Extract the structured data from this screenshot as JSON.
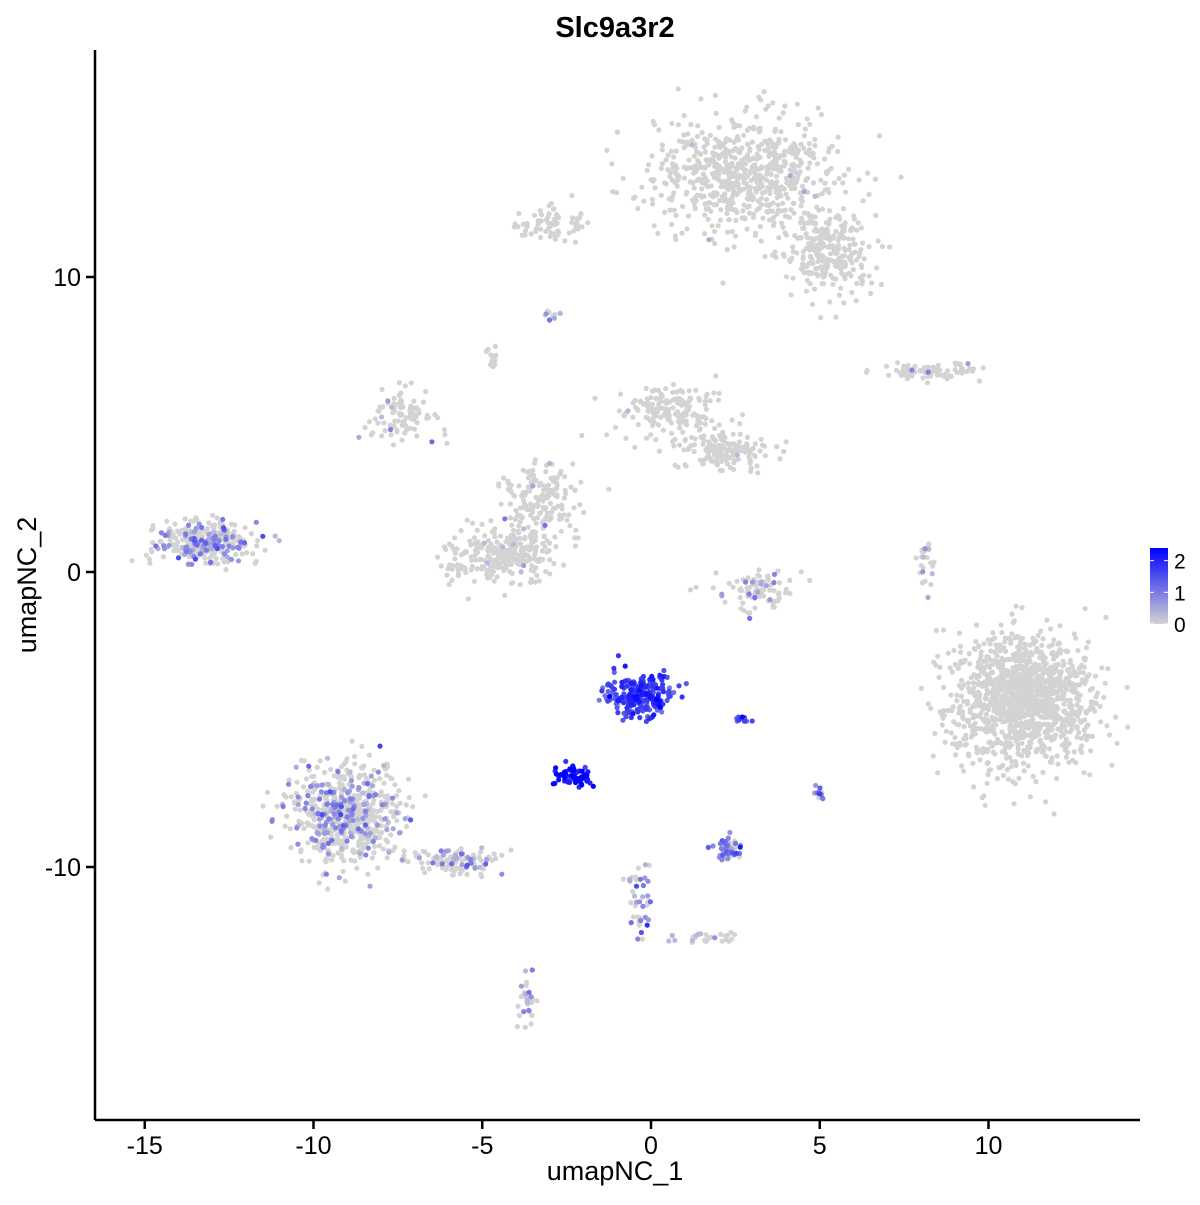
{
  "chart_data": {
    "type": "scatter",
    "title": "Slc9a3r2",
    "xlabel": "umapNC_1",
    "ylabel": "umapNC_2",
    "xlim": [
      -16.5,
      14.5
    ],
    "ylim": [
      -18.5,
      17.5
    ],
    "x_ticks": [
      -15,
      -10,
      -5,
      0,
      5,
      10
    ],
    "x_tick_labels": [
      "-15",
      "-10",
      "-5",
      "0",
      "5",
      "10"
    ],
    "y_ticks": [
      10,
      0,
      -10
    ],
    "y_tick_labels": [
      "10",
      "0",
      "-10"
    ],
    "grid": false,
    "legend": {
      "placement": "right",
      "type": "colorbar",
      "title": "",
      "ticks": [
        2,
        1,
        0
      ],
      "tick_labels": [
        "2",
        "1",
        "0"
      ],
      "range": [
        0,
        2.4
      ],
      "low_color": "#d3d3d3",
      "high_color": "#0000ff"
    },
    "point_color_low": "#d3d3d3",
    "point_color_high": "#0000ff",
    "clusters": [
      {
        "id": "top-large",
        "center": [
          2.8,
          13.5
        ],
        "spread": [
          2.2,
          1.6
        ],
        "n": 700,
        "expr_mean": 0.0,
        "expr_frac": 0.01
      },
      {
        "id": "top-right-tail",
        "center": [
          5.3,
          10.8
        ],
        "spread": [
          1.2,
          1.3
        ],
        "n": 260,
        "expr_mean": 0.1,
        "expr_frac": 0.02
      },
      {
        "id": "top-left-arm",
        "center": [
          -2.8,
          11.8
        ],
        "spread": [
          0.9,
          0.5
        ],
        "n": 70,
        "expr_mean": 0.0,
        "expr_frac": 0.0
      },
      {
        "id": "mid-left-branch",
        "center": [
          -7.4,
          5.3
        ],
        "spread": [
          0.9,
          0.7
        ],
        "n": 90,
        "expr_mean": 0.6,
        "expr_frac": 0.1
      },
      {
        "id": "mid-upper-branch",
        "center": [
          0.5,
          5.5
        ],
        "spread": [
          1.4,
          0.8
        ],
        "n": 160,
        "expr_mean": 0.0,
        "expr_frac": 0.01
      },
      {
        "id": "mid-right-branch",
        "center": [
          2.2,
          4.1
        ],
        "spread": [
          1.1,
          0.5
        ],
        "n": 160,
        "expr_mean": 0.0,
        "expr_frac": 0.01
      },
      {
        "id": "mid-bottom-blob",
        "center": [
          -4.4,
          0.6
        ],
        "spread": [
          1.3,
          0.8
        ],
        "n": 280,
        "expr_mean": 0.1,
        "expr_frac": 0.02
      },
      {
        "id": "mid-center-stem",
        "center": [
          -3.2,
          2.5
        ],
        "spread": [
          1.0,
          1.0
        ],
        "n": 160,
        "expr_mean": 0.1,
        "expr_frac": 0.02
      },
      {
        "id": "left-small",
        "center": [
          -13.2,
          1.0
        ],
        "spread": [
          1.2,
          0.6
        ],
        "n": 330,
        "expr_mean": 0.7,
        "expr_frac": 0.3
      },
      {
        "id": "right-large",
        "center": [
          11.0,
          -4.3
        ],
        "spread": [
          1.7,
          1.8
        ],
        "n": 1300,
        "expr_mean": 0.0,
        "expr_frac": 0.003
      },
      {
        "id": "top-right-strip",
        "center": [
          8.3,
          6.8
        ],
        "spread": [
          1.2,
          0.2
        ],
        "n": 80,
        "expr_mean": 0.6,
        "expr_frac": 0.05
      },
      {
        "id": "mid-right-arc",
        "center": [
          3.2,
          -0.6
        ],
        "spread": [
          1.1,
          0.6
        ],
        "n": 90,
        "expr_mean": 0.7,
        "expr_frac": 0.2
      },
      {
        "id": "bottom-left-big",
        "center": [
          -9.0,
          -8.2
        ],
        "spread": [
          1.3,
          1.4
        ],
        "n": 650,
        "expr_mean": 0.7,
        "expr_frac": 0.25
      },
      {
        "id": "bottom-left-tail",
        "center": [
          -5.8,
          -9.8
        ],
        "spread": [
          1.1,
          0.4
        ],
        "n": 110,
        "expr_mean": 0.7,
        "expr_frac": 0.3
      },
      {
        "id": "blue-main",
        "center": [
          -0.3,
          -4.2
        ],
        "spread": [
          0.8,
          0.6
        ],
        "n": 260,
        "expr_mean": 1.6,
        "expr_frac": 1.0
      },
      {
        "id": "blue-dense",
        "center": [
          -2.3,
          -6.9
        ],
        "spread": [
          0.5,
          0.25
        ],
        "n": 70,
        "expr_mean": 2.2,
        "expr_frac": 1.0
      },
      {
        "id": "small-bottom-cluster",
        "center": [
          2.3,
          -9.4
        ],
        "spread": [
          0.35,
          0.3
        ],
        "n": 60,
        "expr_mean": 1.0,
        "expr_frac": 0.7
      },
      {
        "id": "small-bottom-stem",
        "center": [
          -0.3,
          -11.0
        ],
        "spread": [
          0.3,
          1.0
        ],
        "n": 40,
        "expr_mean": 0.9,
        "expr_frac": 0.6
      },
      {
        "id": "bottom-streak",
        "center": [
          1.8,
          -12.4
        ],
        "spread": [
          0.8,
          0.2
        ],
        "n": 25,
        "expr_mean": 0.3,
        "expr_frac": 0.2
      },
      {
        "id": "bottom-small",
        "center": [
          -3.7,
          -14.5
        ],
        "spread": [
          0.25,
          0.6
        ],
        "n": 30,
        "expr_mean": 0.6,
        "expr_frac": 0.4
      },
      {
        "id": "isolated-right",
        "center": [
          5.0,
          -7.5
        ],
        "spread": [
          0.1,
          0.2
        ],
        "n": 12,
        "expr_mean": 1.0,
        "expr_frac": 0.8
      },
      {
        "id": "isolated-center",
        "center": [
          2.8,
          -5.0
        ],
        "spread": [
          0.3,
          0.1
        ],
        "n": 10,
        "expr_mean": 1.6,
        "expr_frac": 1.0
      },
      {
        "id": "mid-top-small",
        "center": [
          -4.7,
          7.3
        ],
        "spread": [
          0.15,
          0.3
        ],
        "n": 15,
        "expr_mean": 0.0,
        "expr_frac": 0.0
      },
      {
        "id": "mid-right-vert",
        "center": [
          8.1,
          0.2
        ],
        "spread": [
          0.2,
          0.8
        ],
        "n": 25,
        "expr_mean": 0.4,
        "expr_frac": 0.2
      },
      {
        "id": "top-mid-small",
        "center": [
          -3.0,
          8.7
        ],
        "spread": [
          0.2,
          0.1
        ],
        "n": 10,
        "expr_mean": 0.6,
        "expr_frac": 0.4
      }
    ]
  }
}
